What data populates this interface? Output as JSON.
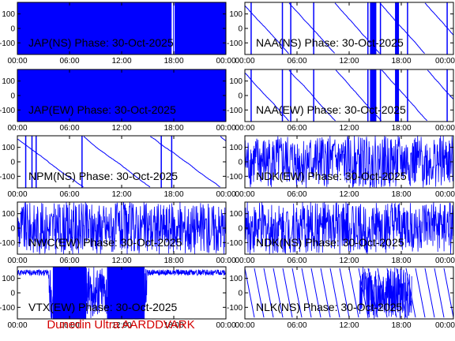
{
  "footer_text": "Dunedin Ultra AARDDVARK",
  "colors": {
    "trace": "#0000ff",
    "axis": "#000000",
    "label": "#000000",
    "footer": "#d40000"
  },
  "chart_data": [
    {
      "type": "line",
      "title": "JAP(NS) Phase: 30-Oct-2025",
      "station": "JAP",
      "component": "NS",
      "date": "30-Oct-2025",
      "ylim": [
        -180,
        180
      ],
      "yticks": [
        -100,
        0,
        100
      ],
      "xticks": [
        "00:00",
        "06:00",
        "12:00",
        "18:00",
        "00:00"
      ],
      "pattern": "solid",
      "gaps": [
        {
          "from": "17:45",
          "to": "17:55"
        },
        {
          "from": "18:00",
          "to": "18:05"
        }
      ]
    },
    {
      "type": "line",
      "title": "NAA(NS) Phase: 30-Oct-2025",
      "station": "NAA",
      "component": "NS",
      "date": "30-Oct-2025",
      "ylim": [
        -180,
        180
      ],
      "yticks": [
        -100,
        0,
        100
      ],
      "xticks": [
        "00:00",
        "06:00",
        "12:00",
        "18:00",
        "00:00"
      ],
      "pattern": "drift",
      "note": "drifting phase trace with wraps"
    },
    {
      "type": "line",
      "title": "JAP(EW) Phase: 30-Oct-2025",
      "station": "JAP",
      "component": "EW",
      "date": "30-Oct-2025",
      "ylim": [
        -180,
        180
      ],
      "yticks": [
        -100,
        0,
        100
      ],
      "xticks": [
        "00:00",
        "06:00",
        "12:00",
        "18:00",
        "00:00"
      ],
      "pattern": "solid"
    },
    {
      "type": "line",
      "title": "NAA(EW) Phase: 30-Oct-2025",
      "station": "NAA",
      "component": "EW",
      "date": "30-Oct-2025",
      "ylim": [
        -180,
        180
      ],
      "yticks": [
        -100,
        0,
        100
      ],
      "xticks": [
        "00:00",
        "06:00",
        "12:00",
        "18:00",
        "00:00"
      ],
      "pattern": "drift"
    },
    {
      "type": "line",
      "title": "NPM(NS) Phase: 30-Oct-2025",
      "station": "NPM",
      "component": "NS",
      "date": "30-Oct-2025",
      "ylim": [
        -180,
        180
      ],
      "yticks": [
        -100,
        0,
        100
      ],
      "xticks": [
        "00:00",
        "06:00",
        "12:00",
        "18:00",
        "00:00"
      ],
      "pattern": "sparse"
    },
    {
      "type": "line",
      "title": "NDK(EW) Phase: 30-Oct-2025",
      "station": "NDK",
      "component": "EW",
      "date": "30-Oct-2025",
      "ylim": [
        -180,
        180
      ],
      "yticks": [
        -100,
        0,
        100
      ],
      "xticks": [
        "00:00",
        "06:00",
        "12:00",
        "18:00",
        "00:00"
      ],
      "pattern": "noise"
    },
    {
      "type": "line",
      "title": "NWC(EW) Phase: 30-Oct-2025",
      "station": "NWC",
      "component": "EW",
      "date": "30-Oct-2025",
      "ylim": [
        -180,
        180
      ],
      "yticks": [
        -100,
        0,
        100
      ],
      "xticks": [
        "00:00",
        "06:00",
        "12:00",
        "18:00",
        "00:00"
      ],
      "pattern": "noise"
    },
    {
      "type": "line",
      "title": "NDK(NS) Phase: 30-Oct-2025",
      "station": "NDK",
      "component": "NS",
      "date": "30-Oct-2025",
      "ylim": [
        -180,
        180
      ],
      "yticks": [
        -100,
        0,
        100
      ],
      "xticks": [
        "00:00",
        "06:00",
        "12:00",
        "18:00",
        "00:00"
      ],
      "pattern": "noise"
    },
    {
      "type": "line",
      "title": "VTX(EW) Phase: 30-Oct-2025",
      "station": "VTX",
      "component": "EW",
      "date": "30-Oct-2025",
      "ylim": [
        -180,
        180
      ],
      "yticks": [
        -100,
        0,
        100
      ],
      "xticks": [
        "00:00",
        "06:00",
        "12:00",
        "18:00",
        "00:00"
      ],
      "pattern": "dense"
    },
    {
      "type": "line",
      "title": "NLK(NS) Phase: 30-Oct-2025",
      "station": "NLK",
      "component": "NS",
      "date": "30-Oct-2025",
      "ylim": [
        -180,
        180
      ],
      "yticks": [
        -100,
        0,
        100
      ],
      "xticks": [
        "00:00",
        "06:00",
        "12:00",
        "18:00",
        "00:00"
      ],
      "pattern": "sawtooth"
    }
  ]
}
